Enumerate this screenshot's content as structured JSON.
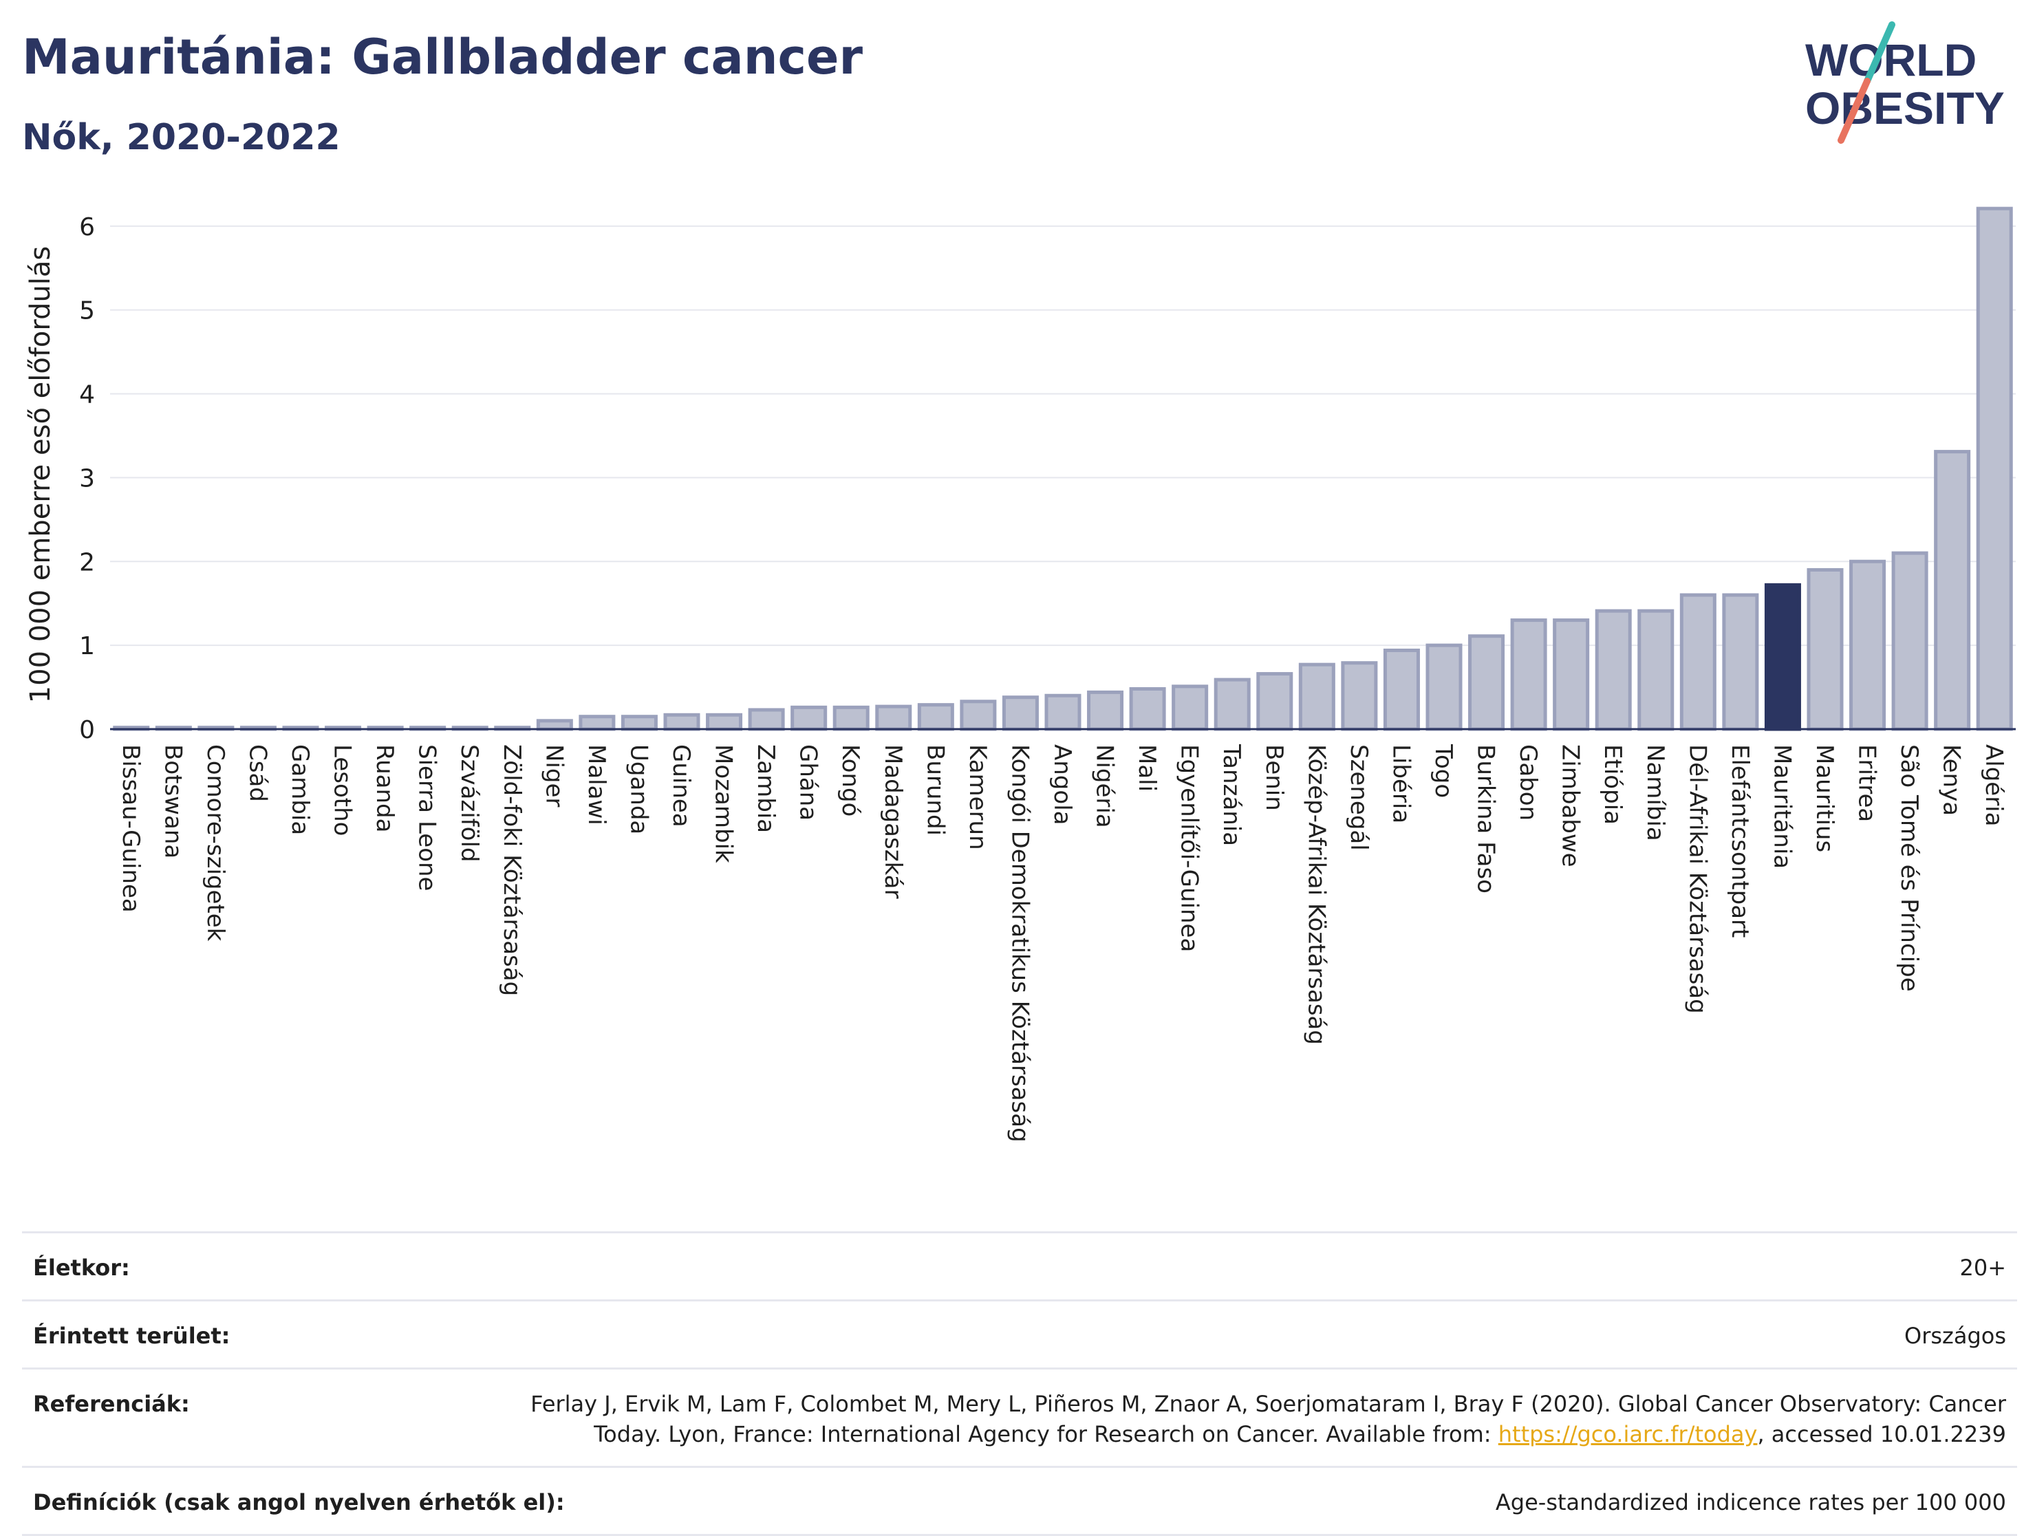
{
  "header": {
    "title": "Mauritánia: Gallbladder cancer",
    "subtitle": "Nők, 2020-2022"
  },
  "logo": {
    "line1": "WORLD",
    "line2": "OBESITY",
    "colors": {
      "text": "#2b3561",
      "slash_top": "#3bb8b0",
      "slash_bottom": "#e8735f"
    }
  },
  "chart_data": {
    "type": "bar",
    "ylabel": "100 000 emberre eső előfordulás",
    "ylim": [
      0,
      6.4
    ],
    "yticks": [
      0,
      1,
      2,
      3,
      4,
      5,
      6
    ],
    "grid": true,
    "highlight": "Mauritánia",
    "colors": {
      "bar": "#bcc0d0",
      "bar_edge": "#9ba1bc",
      "highlight": "#2b3561",
      "grid": "#e6e7ee",
      "axis": "#2b3561"
    },
    "categories": [
      "Bissau-Guinea",
      "Botswana",
      "Comore-szigetek",
      "Csád",
      "Gambia",
      "Lesotho",
      "Ruanda",
      "Sierra Leone",
      "Szváziföld",
      "Zöld-foki Köztársaság",
      "Niger",
      "Malawi",
      "Uganda",
      "Guinea",
      "Mozambik",
      "Zambia",
      "Ghána",
      "Kongó",
      "Madagaszkár",
      "Burundi",
      "Kamerun",
      "Kongói Demokratikus Köztársaság",
      "Angola",
      "Nigéria",
      "Mali",
      "Egyenlítői-Guinea",
      "Tanzánia",
      "Benin",
      "Közép-Afrikai Köztársaság",
      "Szenegál",
      "Libéria",
      "Togo",
      "Burkina Faso",
      "Gabon",
      "Zimbabwe",
      "Etiópia",
      "Namíbia",
      "Dél-Afrikai Köztársaság",
      "Elefántcsontpart",
      "Mauritánia",
      "Mauritius",
      "Eritrea",
      "São Tomé és Príncipe",
      "Kenya",
      "Algéria"
    ],
    "values": [
      0.02,
      0.02,
      0.02,
      0.02,
      0.02,
      0.02,
      0.02,
      0.02,
      0.02,
      0.02,
      0.1,
      0.15,
      0.15,
      0.17,
      0.17,
      0.23,
      0.26,
      0.26,
      0.27,
      0.29,
      0.33,
      0.38,
      0.4,
      0.44,
      0.48,
      0.51,
      0.59,
      0.66,
      0.77,
      0.79,
      0.94,
      1.0,
      1.11,
      1.3,
      1.3,
      1.41,
      1.41,
      1.6,
      1.6,
      1.72,
      1.9,
      2.0,
      2.1,
      3.31,
      6.21
    ]
  },
  "meta": {
    "age_label": "Életkor:",
    "age_value": "20+",
    "area_label": "Érintett terület:",
    "area_value": "Országos",
    "ref_label": "Referenciák:",
    "ref_text_1": "Ferlay J, Ervik M, Lam F, Colombet M, Mery L, Piñeros M, Znaor A, Soerjomataram I, Bray F (2020). Global Cancer Observatory: Cancer",
    "ref_text_2": "Today. Lyon, France: International Agency for Research on Cancer. Available from: ",
    "ref_link": "https://gco.iarc.fr/today",
    "ref_text_3": ", accessed 10.01.2239",
    "def_label": "Definíciók (csak angol nyelven érhetők el):",
    "def_value": "Age-standardized indicence rates per 100 000"
  }
}
